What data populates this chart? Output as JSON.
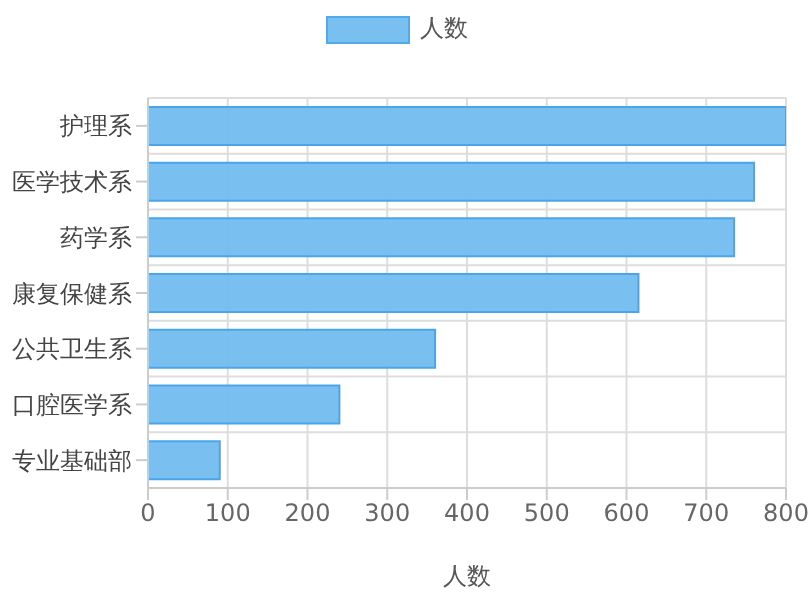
{
  "chart_data": {
    "type": "bar",
    "orientation": "horizontal",
    "xlabel": "人数",
    "categories": [
      "护理系",
      "医学技术系",
      "药学系",
      "康复保健系",
      "公共卫生系",
      "口腔医学系",
      "专业基础部"
    ],
    "series": [
      {
        "name": "人数",
        "color": "#72bcef",
        "values": [
          800,
          760,
          735,
          615,
          360,
          240,
          90
        ]
      }
    ],
    "xlim": [
      0,
      800
    ],
    "xticks": [
      0,
      100,
      200,
      300,
      400,
      500,
      600,
      700,
      800
    ],
    "grid": true,
    "legend": "top"
  }
}
